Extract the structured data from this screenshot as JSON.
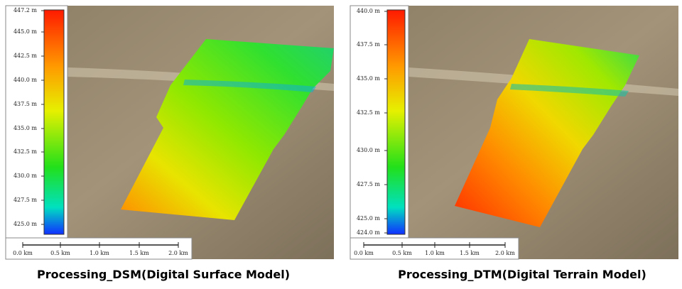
{
  "panels": [
    {
      "caption": "Processing_DSM(Digital Surface Model)",
      "colorbar": [
        "447.2 m",
        "445.0 m",
        "442.5 m",
        "440.0 m",
        "437.5 m",
        "435.0 m",
        "432.5 m",
        "430.0 m",
        "427.5 m",
        "425.0 m"
      ],
      "scale": [
        "0.0 km",
        "0.5 km",
        "1.0 km",
        "1.5 km",
        "2.0 km"
      ]
    },
    {
      "caption": "Processing_DTM(Digital Terrain Model)",
      "colorbar": [
        "440.0 m",
        "437.5 m",
        "435.0 m",
        "432.5 m",
        "430.0 m",
        "427.5 m",
        "425.0 m",
        "424.0 m"
      ],
      "scale": [
        "0.0 km",
        "0.5 km",
        "1.0 km",
        "1.5 km",
        "2.0 km"
      ]
    }
  ]
}
